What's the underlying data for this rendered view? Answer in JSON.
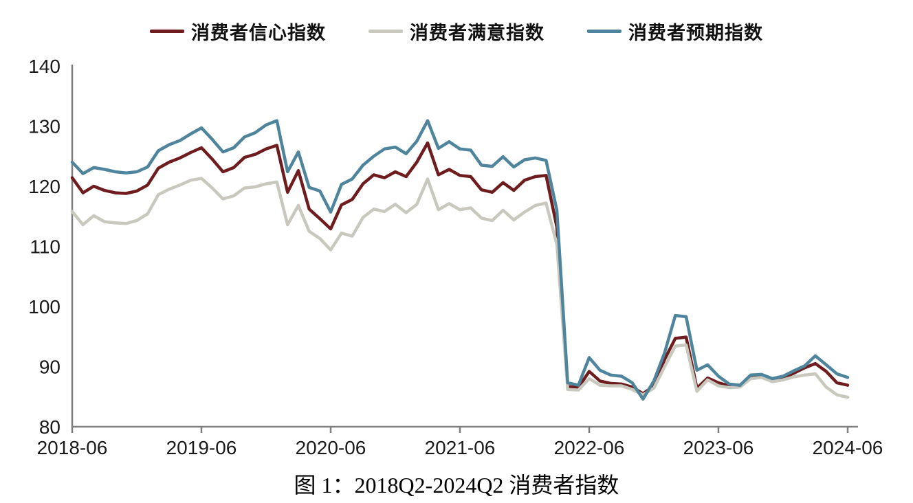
{
  "caption": "图 1：2018Q2-2024Q2 消费者指数",
  "colors": {
    "axis": "#7f7f7f",
    "tick_text": "#1a1a1a",
    "background": "#ffffff"
  },
  "chart_data": {
    "type": "line",
    "title": "图 1：2018Q2-2024Q2 消费者指数",
    "xlabel": "",
    "ylabel": "",
    "ylim": [
      80,
      140
    ],
    "yticks": [
      80,
      90,
      100,
      110,
      120,
      130,
      140
    ],
    "xticks": [
      "2018-06",
      "2019-06",
      "2020-06",
      "2021-06",
      "2022-06",
      "2023-06",
      "2024-06"
    ],
    "grid": false,
    "legend_position": "top",
    "x": [
      "2018-06",
      "2018-07",
      "2018-08",
      "2018-09",
      "2018-10",
      "2018-11",
      "2018-12",
      "2019-01",
      "2019-02",
      "2019-03",
      "2019-04",
      "2019-05",
      "2019-06",
      "2019-07",
      "2019-08",
      "2019-09",
      "2019-10",
      "2019-11",
      "2019-12",
      "2020-01",
      "2020-02",
      "2020-03",
      "2020-04",
      "2020-05",
      "2020-06",
      "2020-07",
      "2020-08",
      "2020-09",
      "2020-10",
      "2020-11",
      "2020-12",
      "2021-01",
      "2021-02",
      "2021-03",
      "2021-04",
      "2021-05",
      "2021-06",
      "2021-07",
      "2021-08",
      "2021-09",
      "2021-10",
      "2021-11",
      "2021-12",
      "2022-01",
      "2022-02",
      "2022-03",
      "2022-04",
      "2022-05",
      "2022-06",
      "2022-07",
      "2022-08",
      "2022-09",
      "2022-10",
      "2022-11",
      "2022-12",
      "2023-01",
      "2023-02",
      "2023-03",
      "2023-04",
      "2023-05",
      "2023-06",
      "2023-07",
      "2023-08",
      "2023-09",
      "2023-10",
      "2023-11",
      "2023-12",
      "2024-01",
      "2024-02",
      "2024-03",
      "2024-04",
      "2024-05",
      "2024-06"
    ],
    "series": [
      {
        "id": "confidence",
        "name": "消费者信心指数",
        "color": "#6e1c1e",
        "values": [
          121.4,
          118.9,
          120.0,
          119.3,
          118.9,
          118.8,
          119.2,
          120.2,
          123.0,
          124.0,
          124.7,
          125.6,
          126.4,
          124.5,
          122.4,
          123.1,
          124.8,
          125.3,
          126.2,
          126.8,
          119.0,
          122.6,
          116.2,
          114.6,
          112.9,
          116.9,
          117.8,
          120.4,
          121.9,
          121.4,
          122.4,
          121.6,
          124.0,
          127.2,
          121.9,
          122.8,
          121.8,
          121.6,
          119.4,
          119.0,
          120.6,
          119.3,
          121.0,
          121.6,
          121.8,
          113.2,
          86.7,
          86.5,
          89.2,
          87.6,
          87.2,
          87.1,
          86.6,
          85.5,
          86.8,
          91.2,
          94.7,
          94.9,
          86.4,
          88.1,
          87.3,
          86.8,
          86.9,
          88.2,
          88.5,
          87.8,
          88.1,
          88.9,
          89.8,
          90.5,
          89.2,
          87.3,
          86.9
        ]
      },
      {
        "id": "satisfaction",
        "name": "消费者满意指数",
        "color": "#c9c8be",
        "values": [
          115.8,
          113.6,
          115.1,
          114.1,
          113.9,
          113.8,
          114.3,
          115.4,
          118.6,
          119.5,
          120.2,
          121.0,
          121.3,
          119.7,
          117.9,
          118.4,
          119.7,
          119.9,
          120.4,
          120.7,
          113.6,
          116.8,
          112.5,
          111.3,
          109.4,
          112.2,
          111.7,
          114.8,
          116.2,
          115.8,
          117.0,
          115.6,
          117.0,
          121.2,
          116.1,
          117.1,
          116.1,
          116.4,
          114.7,
          114.3,
          116.0,
          114.4,
          115.7,
          116.8,
          117.2,
          110.3,
          86.2,
          86.1,
          88.0,
          86.9,
          86.8,
          86.8,
          86.2,
          85.3,
          86.4,
          90.0,
          93.4,
          93.6,
          85.9,
          87.8,
          86.8,
          86.5,
          86.6,
          88.0,
          88.2,
          87.5,
          87.8,
          88.3,
          88.6,
          88.8,
          86.6,
          85.3,
          84.9
        ]
      },
      {
        "id": "expectation",
        "name": "消费者预期指数",
        "color": "#4e849c",
        "values": [
          124.0,
          122.1,
          123.1,
          122.8,
          122.4,
          122.2,
          122.4,
          123.2,
          125.9,
          126.9,
          127.6,
          128.7,
          129.7,
          127.8,
          125.7,
          126.4,
          128.2,
          128.9,
          130.2,
          130.9,
          122.4,
          125.7,
          119.8,
          119.2,
          115.7,
          120.3,
          121.2,
          123.5,
          125.0,
          126.2,
          126.5,
          125.4,
          127.5,
          130.9,
          126.3,
          127.4,
          126.2,
          126.0,
          123.5,
          123.3,
          124.9,
          123.2,
          124.4,
          124.7,
          124.3,
          116.0,
          87.3,
          86.9,
          91.5,
          89.4,
          88.6,
          88.4,
          87.3,
          84.6,
          87.6,
          92.3,
          98.5,
          98.3,
          89.4,
          90.3,
          88.4,
          87.1,
          86.9,
          88.6,
          88.7,
          88.0,
          88.4,
          89.3,
          90.1,
          91.8,
          90.3,
          88.8,
          88.2
        ]
      }
    ]
  }
}
